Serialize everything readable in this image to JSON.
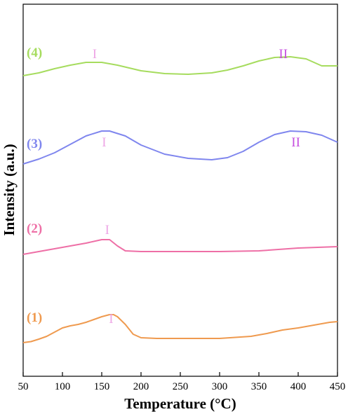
{
  "chart_data": {
    "type": "line",
    "title": "",
    "xlabel": "Temperature (°C)",
    "ylabel": "Intensity (a.u.)",
    "xlim": [
      50,
      450
    ],
    "xticks": [
      50,
      100,
      150,
      200,
      250,
      300,
      350,
      400,
      450
    ],
    "y_ticks_shown": false,
    "grid": false,
    "legend": "none",
    "series": [
      {
        "name": "(1)",
        "color": "#ef9a4f",
        "x": [
          50,
          60,
          70,
          80,
          90,
          100,
          110,
          120,
          130,
          140,
          150,
          160,
          165,
          170,
          180,
          190,
          200,
          220,
          250,
          300,
          340,
          360,
          380,
          400,
          420,
          440,
          450
        ],
        "y": [
          0.2,
          0.35,
          0.7,
          1.1,
          1.7,
          2.3,
          2.6,
          2.8,
          3.1,
          3.5,
          3.9,
          4.2,
          4.2,
          3.9,
          2.8,
          1.4,
          0.9,
          0.8,
          0.8,
          0.8,
          1.1,
          1.5,
          2.0,
          2.3,
          2.7,
          3.1,
          3.2
        ]
      },
      {
        "name": "(2)",
        "color": "#ee6fa6",
        "x": [
          50,
          70,
          90,
          110,
          130,
          150,
          160,
          170,
          180,
          200,
          250,
          300,
          350,
          400,
          450
        ],
        "y": [
          0.2,
          0.6,
          1.0,
          1.4,
          1.8,
          2.3,
          2.3,
          1.4,
          0.7,
          0.6,
          0.6,
          0.6,
          0.7,
          1.1,
          1.3
        ]
      },
      {
        "name": "(3)",
        "color": "#7f86ee",
        "x": [
          50,
          70,
          90,
          110,
          130,
          150,
          160,
          180,
          200,
          230,
          260,
          290,
          310,
          330,
          350,
          370,
          390,
          410,
          430,
          450
        ],
        "y": [
          0.2,
          0.9,
          1.8,
          3.0,
          4.2,
          4.9,
          4.9,
          4.2,
          2.9,
          1.6,
          1.0,
          0.8,
          1.1,
          2.0,
          3.3,
          4.4,
          4.9,
          4.8,
          4.3,
          3.3
        ]
      },
      {
        "name": "(4)",
        "color": "#a6dc5e",
        "x": [
          50,
          70,
          90,
          110,
          130,
          150,
          170,
          200,
          230,
          260,
          290,
          310,
          330,
          350,
          370,
          390,
          410,
          430,
          450
        ],
        "y": [
          0.2,
          0.6,
          1.2,
          1.7,
          2.1,
          2.1,
          1.7,
          0.9,
          0.5,
          0.4,
          0.6,
          1.0,
          1.6,
          2.3,
          2.8,
          2.9,
          2.6,
          1.6,
          1.6
        ]
      }
    ],
    "peak_labels": [
      {
        "series": "(1)",
        "text": "I",
        "x": 162
      },
      {
        "series": "(2)",
        "text": "I",
        "x": 157
      },
      {
        "series": "(3)",
        "text": "I",
        "x": 153
      },
      {
        "series": "(3)",
        "text": "II",
        "x": 397
      },
      {
        "series": "(4)",
        "text": "I",
        "x": 141
      },
      {
        "series": "(4)",
        "text": "II",
        "x": 381
      }
    ],
    "peak_label_colors": {
      "I": "#eea6e6",
      "II": "#c64fe0"
    }
  }
}
